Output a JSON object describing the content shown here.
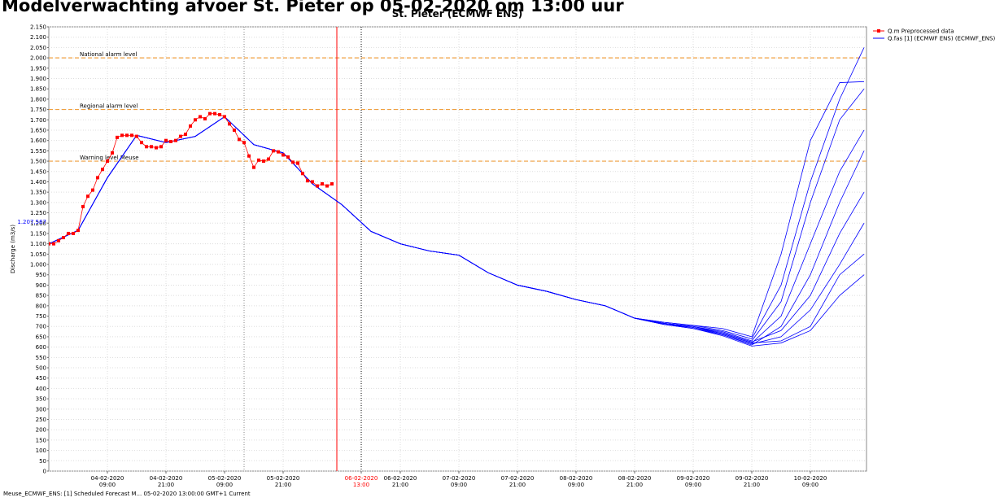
{
  "chart_data": {
    "type": "line",
    "title": "Modelverwachting afvoer St. Pieter op 05-02-2020 om 13:00 uur",
    "subtitle": "St. Pieter (ECMWF ENS)",
    "ylabel": "Discharge (m3/s)",
    "footer": "Meuse_ECMWF_ENS: [1] Scheduled Forecast M... 05-02-2020 13:00:00 GMT+1 Current",
    "ylim": [
      0,
      2150
    ],
    "yticks": [
      0,
      50,
      100,
      150,
      200,
      250,
      300,
      350,
      400,
      450,
      500,
      550,
      600,
      650,
      700,
      750,
      800,
      850,
      900,
      950,
      {
        "value": 1000,
        "label": "1.000"
      },
      {
        "value": 1050,
        "label": "1.050"
      },
      {
        "value": 1100,
        "label": "1.100"
      },
      {
        "value": 1150,
        "label": "1.150"
      },
      {
        "value": 1200,
        "label": "1.200"
      },
      {
        "value": 1250,
        "label": "1.250"
      },
      {
        "value": 1300,
        "label": "1.300"
      },
      {
        "value": 1350,
        "label": "1.350"
      },
      {
        "value": 1400,
        "label": "1.400"
      },
      {
        "value": 1450,
        "label": "1.450"
      },
      {
        "value": 1500,
        "label": "1.500"
      },
      {
        "value": 1550,
        "label": "1.550"
      },
      {
        "value": 1600,
        "label": "1.600"
      },
      {
        "value": 1650,
        "label": "1.650"
      },
      {
        "value": 1700,
        "label": "1.700"
      },
      {
        "value": 1750,
        "label": "1.750"
      },
      {
        "value": 1800,
        "label": "1.800"
      },
      {
        "value": 1850,
        "label": "1.850"
      },
      {
        "value": 1900,
        "label": "1.900"
      },
      {
        "value": 1950,
        "label": "1.950"
      },
      {
        "value": 2000,
        "label": "2.000"
      },
      {
        "value": 2050,
        "label": "2.050"
      },
      {
        "value": 2100,
        "label": "2.100"
      },
      {
        "value": 2150,
        "label": "2.150"
      }
    ],
    "xlim": [
      "03-02-2020 21:00",
      "10-02-2020 20:30"
    ],
    "xticks": [
      "04-02-2020 09:00",
      "04-02-2020 21:00",
      "05-02-2020 09:00",
      "05-02-2020 21:00",
      {
        "value": "06-02-2020 13:00",
        "color": "#ff0000"
      },
      "06-02-2020 21:00",
      "07-02-2020 09:00",
      "07-02-2020 21:00",
      "08-02-2020 09:00",
      "08-02-2020 21:00",
      "09-02-2020 09:00",
      "09-02-2020 21:00",
      "10-02-2020 09:00"
    ],
    "grid": true,
    "y_marker": {
      "value": 1207.567,
      "label": "1.207,567",
      "color": "#0000ff"
    },
    "thresholds": [
      {
        "value": 2000,
        "label": "National alarm level",
        "color": "#f0a040"
      },
      {
        "value": 1750,
        "label": "Regional alarm level",
        "color": "#f0a040"
      },
      {
        "value": 1500,
        "label": "Warning level Meuse",
        "color": "#f0a040"
      }
    ],
    "vlines": [
      {
        "x": "05-02-2020 13:00",
        "color": "#888888",
        "style": "dotted"
      },
      {
        "x": "06-02-2020 08:00",
        "color": "#ff0000",
        "style": "solid"
      },
      {
        "x": "06-02-2020 13:00",
        "color": "#000000",
        "style": "dotted"
      }
    ],
    "legend": "top-right",
    "series": [
      {
        "name": "Q.m Preprocessed data",
        "color": "#ff0000",
        "markers": true,
        "x": [
          "03-02-2020 21:00",
          "03-02-2020 22:00",
          "03-02-2020 23:00",
          "04-02-2020 00:00",
          "04-02-2020 01:00",
          "04-02-2020 02:00",
          "04-02-2020 03:00",
          "04-02-2020 04:00",
          "04-02-2020 05:00",
          "04-02-2020 06:00",
          "04-02-2020 07:00",
          "04-02-2020 08:00",
          "04-02-2020 09:00",
          "04-02-2020 10:00",
          "04-02-2020 11:00",
          "04-02-2020 12:00",
          "04-02-2020 13:00",
          "04-02-2020 14:00",
          "04-02-2020 15:00",
          "04-02-2020 16:00",
          "04-02-2020 17:00",
          "04-02-2020 18:00",
          "04-02-2020 19:00",
          "04-02-2020 20:00",
          "04-02-2020 21:00",
          "04-02-2020 22:00",
          "04-02-2020 23:00",
          "05-02-2020 00:00",
          "05-02-2020 01:00",
          "05-02-2020 02:00",
          "05-02-2020 03:00",
          "05-02-2020 04:00",
          "05-02-2020 05:00",
          "05-02-2020 06:00",
          "05-02-2020 07:00",
          "05-02-2020 08:00",
          "05-02-2020 09:00",
          "05-02-2020 10:00",
          "05-02-2020 11:00",
          "05-02-2020 12:00",
          "05-02-2020 13:00",
          "05-02-2020 14:00",
          "05-02-2020 15:00",
          "05-02-2020 16:00",
          "05-02-2020 17:00",
          "05-02-2020 18:00",
          "05-02-2020 19:00",
          "05-02-2020 20:00",
          "05-02-2020 21:00",
          "05-02-2020 22:00",
          "05-02-2020 23:00",
          "06-02-2020 00:00",
          "06-02-2020 01:00",
          "06-02-2020 02:00",
          "06-02-2020 03:00",
          "06-02-2020 04:00",
          "06-02-2020 05:00",
          "06-02-2020 06:00",
          "06-02-2020 07:00"
        ],
        "values": [
          1100,
          1100,
          1115,
          1130,
          1150,
          1150,
          1165,
          1280,
          1330,
          1360,
          1420,
          1460,
          1500,
          1540,
          1615,
          1625,
          1625,
          1625,
          1620,
          1590,
          1570,
          1570,
          1565,
          1570,
          1600,
          1595,
          1600,
          1620,
          1630,
          1670,
          1700,
          1715,
          1705,
          1730,
          1730,
          1725,
          1715,
          1680,
          1650,
          1605,
          1590,
          1525,
          1470,
          1505,
          1500,
          1510,
          1550,
          1545,
          1530,
          1520,
          1495,
          1490,
          1440,
          1405,
          1400,
          1380,
          1390,
          1380,
          1390
        ]
      },
      {
        "name": "Q.fas [1] (ECMWF ENS)  (ECMWF_ENS)",
        "color": "#0000ff",
        "x": [
          "03-02-2020 21:00",
          "04-02-2020 03:00",
          "04-02-2020 09:00",
          "04-02-2020 15:00",
          "04-02-2020 21:00",
          "05-02-2020 03:00",
          "05-02-2020 09:00",
          "05-02-2020 15:00",
          "05-02-2020 21:00",
          "06-02-2020 03:00",
          "06-02-2020 09:00",
          "06-02-2020 15:00",
          "06-02-2020 21:00",
          "07-02-2020 03:00",
          "07-02-2020 09:00",
          "07-02-2020 15:00",
          "07-02-2020 21:00",
          "08-02-2020 03:00",
          "08-02-2020 09:00",
          "08-02-2020 15:00",
          "08-02-2020 21:00",
          "09-02-2020 03:00",
          "09-02-2020 09:00",
          "09-02-2020 15:00",
          "09-02-2020 21:00",
          "10-02-2020 03:00",
          "10-02-2020 09:00",
          "10-02-2020 15:00",
          "10-02-2020 20:00"
        ],
        "members": [
          [
            1100,
            1165,
            1420,
            1625,
            1590,
            1620,
            1715,
            1580,
            1540,
            1390,
            1290,
            1160,
            1100,
            1065,
            1045,
            960,
            900,
            870,
            830,
            800,
            740,
            720,
            705,
            680,
            640,
            900,
            1400,
            1800,
            2050
          ],
          [
            1100,
            1165,
            1420,
            1625,
            1590,
            1620,
            1715,
            1580,
            1540,
            1390,
            1290,
            1160,
            1100,
            1065,
            1045,
            960,
            900,
            870,
            830,
            800,
            740,
            720,
            705,
            690,
            650,
            1050,
            1600,
            1880,
            1885
          ],
          [
            1100,
            1165,
            1420,
            1625,
            1590,
            1620,
            1715,
            1580,
            1540,
            1390,
            1290,
            1160,
            1100,
            1065,
            1045,
            960,
            900,
            870,
            830,
            800,
            740,
            715,
            700,
            675,
            630,
            820,
            1300,
            1700,
            1850
          ],
          [
            1100,
            1165,
            1420,
            1625,
            1590,
            1620,
            1715,
            1580,
            1540,
            1390,
            1290,
            1160,
            1100,
            1065,
            1045,
            960,
            900,
            870,
            830,
            800,
            740,
            715,
            695,
            665,
            620,
            750,
            1100,
            1450,
            1650
          ],
          [
            1100,
            1165,
            1420,
            1625,
            1590,
            1620,
            1715,
            1580,
            1540,
            1390,
            1290,
            1160,
            1100,
            1065,
            1045,
            960,
            900,
            870,
            830,
            800,
            740,
            710,
            690,
            660,
            610,
            700,
            950,
            1300,
            1550
          ],
          [
            1100,
            1165,
            1420,
            1625,
            1590,
            1620,
            1715,
            1580,
            1540,
            1390,
            1290,
            1160,
            1100,
            1065,
            1045,
            960,
            900,
            870,
            830,
            800,
            740,
            715,
            700,
            670,
            625,
            680,
            850,
            1150,
            1350
          ],
          [
            1100,
            1165,
            1420,
            1625,
            1590,
            1620,
            1715,
            1580,
            1540,
            1390,
            1290,
            1160,
            1100,
            1065,
            1045,
            960,
            900,
            870,
            830,
            800,
            740,
            710,
            695,
            660,
            615,
            650,
            780,
            1000,
            1200
          ],
          [
            1100,
            1165,
            1420,
            1625,
            1590,
            1620,
            1715,
            1580,
            1540,
            1390,
            1290,
            1160,
            1100,
            1065,
            1045,
            960,
            900,
            870,
            830,
            800,
            740,
            715,
            700,
            665,
            620,
            630,
            700,
            950,
            1050
          ],
          [
            1100,
            1165,
            1420,
            1625,
            1590,
            1620,
            1715,
            1580,
            1540,
            1390,
            1290,
            1160,
            1100,
            1065,
            1045,
            960,
            900,
            870,
            830,
            800,
            740,
            710,
            690,
            655,
            605,
            620,
            680,
            850,
            950
          ]
        ]
      }
    ]
  }
}
